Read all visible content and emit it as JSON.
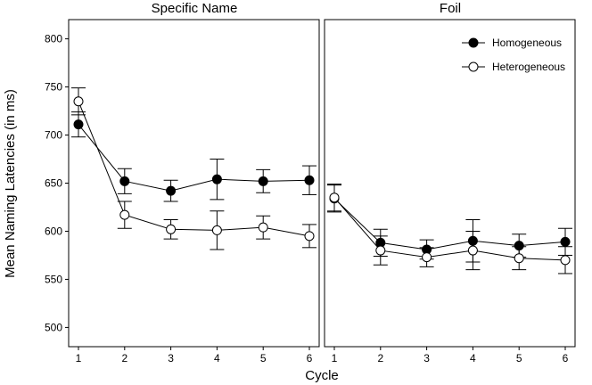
{
  "chart_data": {
    "type": "line",
    "xlabel": "Cycle",
    "ylabel": "Mean Naming Latencies (in ms)",
    "ylim": [
      480,
      820
    ],
    "yticks": [
      500,
      550,
      600,
      650,
      700,
      750,
      800
    ],
    "x": [
      1,
      2,
      3,
      4,
      5,
      6
    ],
    "legend_position": "top-right",
    "legend": [
      {
        "name": "Homogeneous",
        "marker": "filled-circle"
      },
      {
        "name": "Heterogeneous",
        "marker": "open-circle"
      }
    ],
    "panels": [
      {
        "title": "Specific Name",
        "series": [
          {
            "name": "Homogeneous",
            "values": [
              711,
              652,
              642,
              654,
              652,
              653
            ],
            "errors": [
              13,
              13,
              11,
              21,
              12,
              15
            ]
          },
          {
            "name": "Heterogeneous",
            "values": [
              735,
              617,
              602,
              601,
              604,
              595
            ],
            "errors": [
              14,
              14,
              10,
              20,
              12,
              12
            ]
          }
        ]
      },
      {
        "title": "Foil",
        "series": [
          {
            "name": "Homogeneous",
            "values": [
              634,
              588,
              581,
              590,
              585,
              589
            ],
            "errors": [
              14,
              14,
              10,
              22,
              12,
              14
            ]
          },
          {
            "name": "Heterogeneous",
            "values": [
              635,
              580,
              573,
              580,
              572,
              570
            ],
            "errors": [
              14,
              15,
              10,
              20,
              12,
              14
            ]
          }
        ]
      }
    ]
  }
}
